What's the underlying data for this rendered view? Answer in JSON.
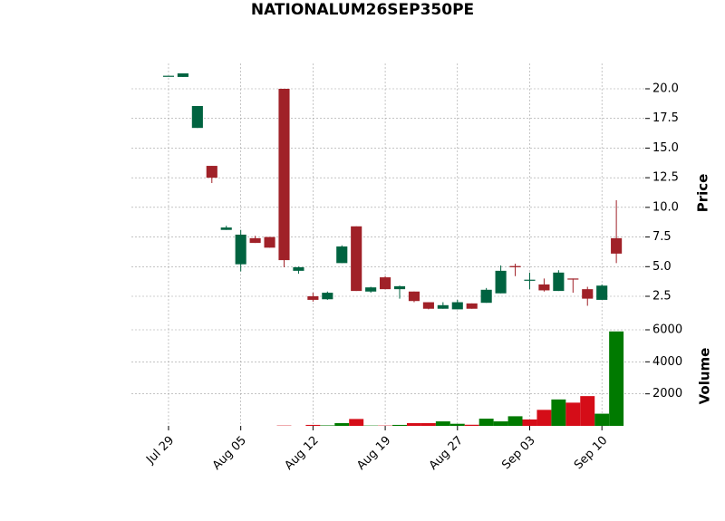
{
  "chart_data": {
    "type": "candlestick",
    "title": "NATIONALUM26SEP350PE",
    "ylabel": "Price",
    "y2label": "Volume",
    "open": [
      21.1,
      21.0,
      16.7,
      13.5,
      8.1,
      5.2,
      7.4,
      7.5,
      20.0,
      4.65,
      2.5,
      2.25,
      5.3,
      8.4,
      2.9,
      4.1,
      3.1,
      2.9,
      2.0,
      1.45,
      1.4,
      1.9,
      1.95,
      2.75,
      5.05,
      3.85,
      3.5,
      2.95,
      4.0,
      3.1,
      2.2,
      7.4
    ],
    "high": [
      21.1,
      21.3,
      18.55,
      13.5,
      8.45,
      8.1,
      7.6,
      7.5,
      20.0,
      5.0,
      2.8,
      2.9,
      6.8,
      8.4,
      3.3,
      4.2,
      3.4,
      2.9,
      2.0,
      2.0,
      2.2,
      1.9,
      3.2,
      5.1,
      5.25,
      4.5,
      4.0,
      4.7,
      4.0,
      3.3,
      3.5,
      10.6
    ],
    "low": [
      21.1,
      21.0,
      16.7,
      12.05,
      8.1,
      4.6,
      7.0,
      6.6,
      4.95,
      4.4,
      2.05,
      2.2,
      5.3,
      2.95,
      2.8,
      3.1,
      2.3,
      2.0,
      1.4,
      1.45,
      1.4,
      1.45,
      1.95,
      2.75,
      4.2,
      3.1,
      2.9,
      2.95,
      2.8,
      1.7,
      2.2,
      5.3
    ],
    "close": [
      21.1,
      21.3,
      18.55,
      12.5,
      8.3,
      7.7,
      7.0,
      6.6,
      5.55,
      4.95,
      2.2,
      2.8,
      6.7,
      2.95,
      3.25,
      3.1,
      3.35,
      2.1,
      1.45,
      1.75,
      2.0,
      1.45,
      3.05,
      4.65,
      4.95,
      3.9,
      3.0,
      4.5,
      3.95,
      2.3,
      3.4,
      6.1
    ],
    "volume": [
      0,
      0,
      0,
      0,
      0,
      0,
      0,
      0,
      20,
      0,
      60,
      30,
      170,
      430,
      20,
      20,
      60,
      170,
      170,
      280,
      130,
      70,
      450,
      280,
      600,
      400,
      1000,
      1650,
      1450,
      1860,
      760,
      5900
    ],
    "up_color": "#006340",
    "down_color": "#a02128",
    "volume_up_color": "#007a00",
    "volume_down_color": "#d50d18",
    "xlim": [
      -2.57,
      33.0
    ],
    "xticks": [
      {
        "value": 0,
        "label": "Jul 29"
      },
      {
        "value": 5,
        "label": "Aug 05"
      },
      {
        "value": 10,
        "label": "Aug 12"
      },
      {
        "value": 15,
        "label": "Aug 19"
      },
      {
        "value": 20,
        "label": "Aug 27"
      },
      {
        "value": 25,
        "label": "Sep 03"
      },
      {
        "value": 30,
        "label": "Sep 10"
      }
    ],
    "ylim": [
      0.36,
      22.14
    ],
    "yticks": [
      2.5,
      {
        "value": 5,
        "label": "5.0"
      },
      7.5,
      {
        "value": 10,
        "label": "10.0"
      },
      12.5,
      {
        "value": 15,
        "label": "15.0"
      },
      17.5,
      {
        "value": 20,
        "label": "20.0"
      }
    ],
    "y2lim": [
      0,
      6340
    ],
    "y2ticks": [
      2000,
      4000,
      6000
    ],
    "grid": true
  }
}
